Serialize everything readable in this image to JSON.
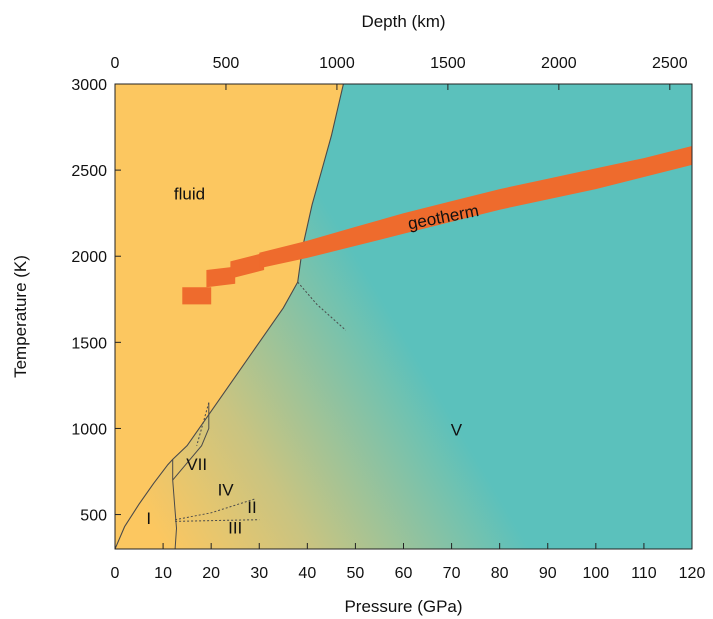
{
  "chart_data": {
    "type": "area",
    "title": "",
    "xlabel": "Pressure (GPa)",
    "ylabel": "Temperature (K)",
    "x2label": "Depth (km)",
    "xlim": [
      0,
      120
    ],
    "ylim": [
      300,
      3000
    ],
    "x2lim": [
      0,
      2600
    ],
    "x_ticks": [
      0,
      10,
      20,
      30,
      40,
      50,
      60,
      70,
      80,
      90,
      100,
      110,
      120
    ],
    "x_tick_labels": [
      "0",
      "10",
      "20",
      "30",
      "40",
      "50",
      "60",
      "70",
      "80",
      "90",
      "100",
      "110",
      "120"
    ],
    "y_ticks": [
      500,
      1000,
      1500,
      2000,
      2500,
      3000
    ],
    "y_tick_labels": [
      "500",
      "1000",
      "1500",
      "2000",
      "2500",
      "3000"
    ],
    "x2_ticks": [
      0,
      500,
      1000,
      1500,
      2000,
      2500
    ],
    "x2_tick_labels": [
      "0",
      "500",
      "1000",
      "1500",
      "2000",
      "2500"
    ],
    "grid": false,
    "colors": {
      "fluid": "#fcc760",
      "ice_v": "#5bc1bc",
      "geotherm": "#ee6b2d",
      "boundary": "#4a4a4a"
    },
    "regions": [
      {
        "label": "fluid",
        "x": 15.5,
        "y": 2330
      },
      {
        "label": "V",
        "x": 71,
        "y": 960
      },
      {
        "label": "VII",
        "x": 17,
        "y": 760
      },
      {
        "label": "IV",
        "x": 23,
        "y": 610
      },
      {
        "label": "I",
        "x": 7,
        "y": 445
      },
      {
        "label": "II",
        "x": 28.5,
        "y": 510
      },
      {
        "label": "III",
        "x": 25,
        "y": 390
      }
    ],
    "fluid_boundary": [
      [
        0,
        300
      ],
      [
        2,
        430
      ],
      [
        5,
        560
      ],
      [
        8,
        680
      ],
      [
        11,
        790
      ],
      [
        12,
        820
      ],
      [
        15,
        900
      ],
      [
        20,
        1100
      ],
      [
        25,
        1300
      ],
      [
        30,
        1500
      ],
      [
        35,
        1700
      ],
      [
        38,
        1850
      ],
      [
        39,
        2050
      ],
      [
        41,
        2300
      ],
      [
        43,
        2500
      ],
      [
        45,
        2700
      ],
      [
        47.5,
        3000
      ]
    ],
    "phase_lines": [
      {
        "name": "I-boundary",
        "points": [
          [
            12,
            820
          ],
          [
            12,
            700
          ],
          [
            12.5,
            520
          ],
          [
            12.8,
            420
          ],
          [
            12.5,
            300
          ]
        ],
        "dash": false
      },
      {
        "name": "VII-boundary",
        "points": [
          [
            12,
            700
          ],
          [
            15,
            800
          ],
          [
            18,
            900
          ],
          [
            19.5,
            1000
          ],
          [
            19.5,
            1150
          ]
        ],
        "dash": false
      },
      {
        "name": "II-IV",
        "points": [
          [
            12.5,
            470
          ],
          [
            20,
            510
          ],
          [
            29,
            590
          ]
        ],
        "dash": true
      },
      {
        "name": "II-III",
        "points": [
          [
            12.5,
            460
          ],
          [
            20,
            465
          ],
          [
            30,
            470
          ]
        ],
        "dash": true
      },
      {
        "name": "V-VII",
        "points": [
          [
            19.5,
            1150
          ],
          [
            18,
            1000
          ],
          [
            17,
            900
          ]
        ],
        "dash": true
      },
      {
        "name": "extension",
        "points": [
          [
            38,
            1850
          ],
          [
            42,
            1720
          ],
          [
            48,
            1570
          ]
        ],
        "dash": true
      }
    ],
    "series": [
      {
        "name": "geotherm",
        "segments": [
          {
            "upper": [
              [
                14,
                1820
              ],
              [
                20,
                1820
              ]
            ],
            "lower": [
              [
                14,
                1720
              ],
              [
                20,
                1720
              ]
            ]
          },
          {
            "upper": [
              [
                19,
                1920
              ],
              [
                25,
                1940
              ]
            ],
            "lower": [
              [
                19,
                1820
              ],
              [
                25,
                1840
              ]
            ]
          },
          {
            "upper": [
              [
                24,
                1970
              ],
              [
                31,
                2020
              ]
            ],
            "lower": [
              [
                24,
                1870
              ],
              [
                31,
                1920
              ]
            ]
          },
          {
            "upper": [
              [
                30,
                2020
              ],
              [
                40,
                2090
              ],
              [
                50,
                2170
              ],
              [
                60,
                2250
              ],
              [
                70,
                2320
              ],
              [
                80,
                2390
              ],
              [
                90,
                2450
              ],
              [
                100,
                2510
              ],
              [
                110,
                2570
              ],
              [
                120,
                2640
              ]
            ],
            "lower": [
              [
                30,
                1930
              ],
              [
                40,
                1990
              ],
              [
                50,
                2060
              ],
              [
                60,
                2130
              ],
              [
                70,
                2200
              ],
              [
                80,
                2270
              ],
              [
                90,
                2330
              ],
              [
                100,
                2390
              ],
              [
                110,
                2460
              ],
              [
                120,
                2530
              ]
            ]
          }
        ],
        "label": "geotherm",
        "label_x": 68.5,
        "label_y": 2195,
        "label_angle": -11
      }
    ]
  }
}
